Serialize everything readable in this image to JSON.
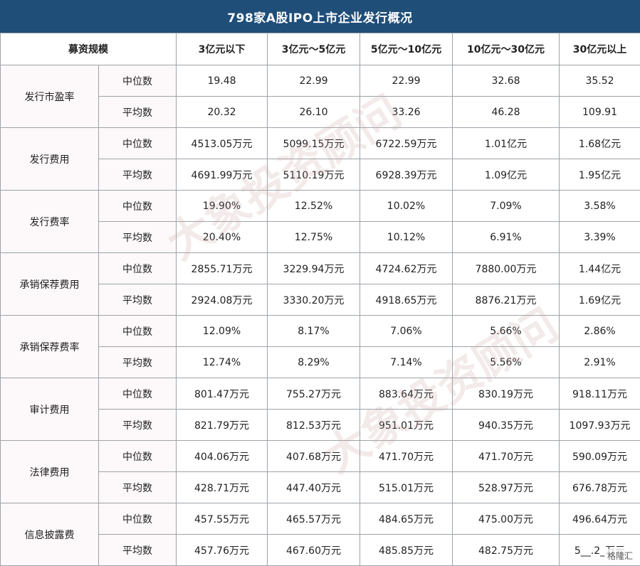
{
  "title": "798家A股IPO上市企业发行概况",
  "header": {
    "first": "募资规模",
    "cols": [
      "3亿元以下",
      "3亿元～5亿元",
      "5亿元～10亿元",
      "10亿元～30亿元",
      "30亿元以上"
    ]
  },
  "groups": [
    {
      "name": "发行市盈率",
      "rows": [
        {
          "label": "中位数",
          "values": [
            "19.48",
            "22.99",
            "22.99",
            "32.68",
            "35.52"
          ]
        },
        {
          "label": "平均数",
          "values": [
            "20.32",
            "26.10",
            "33.26",
            "46.28",
            "109.91"
          ]
        }
      ]
    },
    {
      "name": "发行费用",
      "rows": [
        {
          "label": "中位数",
          "values": [
            "4513.05万元",
            "5099.15万元",
            "6722.59万元",
            "1.01亿元",
            "1.68亿元"
          ]
        },
        {
          "label": "平均数",
          "values": [
            "4691.99万元",
            "5110.19万元",
            "6928.39万元",
            "1.09亿元",
            "1.95亿元"
          ]
        }
      ]
    },
    {
      "name": "发行费率",
      "rows": [
        {
          "label": "中位数",
          "values": [
            "19.90%",
            "12.52%",
            "10.02%",
            "7.09%",
            "3.58%"
          ]
        },
        {
          "label": "平均数",
          "values": [
            "20.40%",
            "12.75%",
            "10.12%",
            "6.91%",
            "3.39%"
          ]
        }
      ]
    },
    {
      "name": "承销保荐费用",
      "rows": [
        {
          "label": "中位数",
          "values": [
            "2855.71万元",
            "3229.94万元",
            "4724.62万元",
            "7880.00万元",
            "1.44亿元"
          ]
        },
        {
          "label": "平均数",
          "values": [
            "2924.08万元",
            "3330.20万元",
            "4918.65万元",
            "8876.21万元",
            "1.69亿元"
          ]
        }
      ]
    },
    {
      "name": "承销保荐费率",
      "rows": [
        {
          "label": "中位数",
          "values": [
            "12.09%",
            "8.17%",
            "7.06%",
            "5.66%",
            "2.86%"
          ]
        },
        {
          "label": "平均数",
          "values": [
            "12.74%",
            "8.29%",
            "7.14%",
            "5.56%",
            "2.91%"
          ]
        }
      ]
    },
    {
      "name": "审计费用",
      "rows": [
        {
          "label": "中位数",
          "values": [
            "801.47万元",
            "755.27万元",
            "883.64万元",
            "830.19万元",
            "918.11万元"
          ]
        },
        {
          "label": "平均数",
          "values": [
            "821.79万元",
            "812.53万元",
            "951.01万元",
            "940.35万元",
            "1097.93万元"
          ]
        }
      ]
    },
    {
      "name": "法律费用",
      "rows": [
        {
          "label": "中位数",
          "values": [
            "404.06万元",
            "407.68万元",
            "471.70万元",
            "471.70万元",
            "590.09万元"
          ]
        },
        {
          "label": "平均数",
          "values": [
            "428.71万元",
            "447.40万元",
            "515.01万元",
            "528.97万元",
            "676.78万元"
          ]
        }
      ]
    },
    {
      "name": "信息披露费",
      "rows": [
        {
          "label": "中位数",
          "values": [
            "457.55万元",
            "465.57万元",
            "484.65万元",
            "475.00万元",
            "496.64万元"
          ]
        },
        {
          "label": "平均数",
          "values": [
            "457.76万元",
            "467.60万元",
            "485.85万元",
            "482.75万元",
            "5__.2_万元"
          ]
        }
      ]
    }
  ],
  "watermark": "大象投资顾问",
  "corner_logo": "格隆汇"
}
